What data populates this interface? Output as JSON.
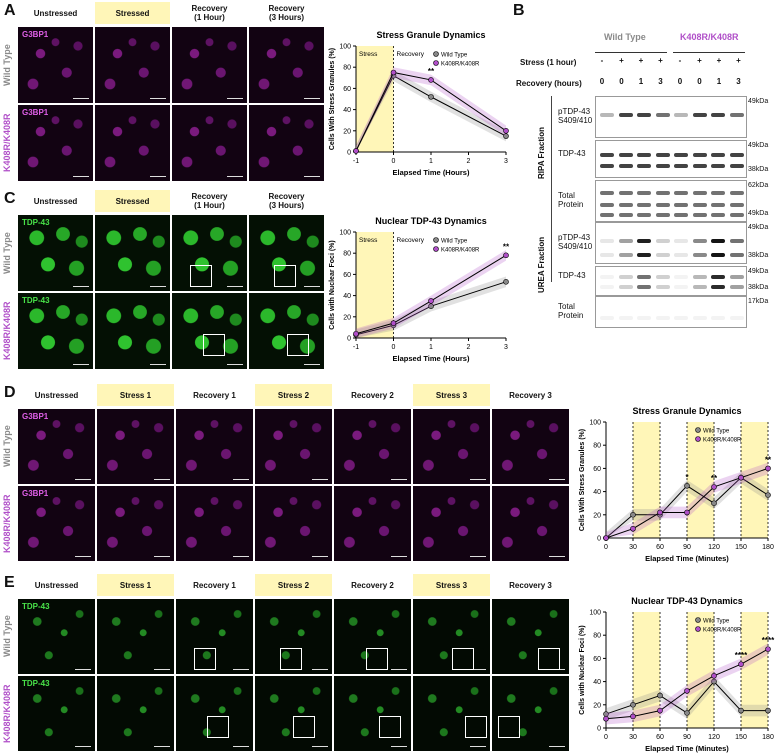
{
  "panels": {
    "A": "A",
    "B": "B",
    "C": "C",
    "D": "D",
    "E": "E"
  },
  "headers_AC": [
    "Unstressed",
    "Stressed",
    "Recovery\n(1 Hour)",
    "Recovery\n(3 Hours)"
  ],
  "headers_DE": [
    "Unstressed",
    "Stress 1",
    "Recovery 1",
    "Stress 2",
    "Recovery 2",
    "Stress 3",
    "Recovery 3"
  ],
  "row_labels": {
    "wt": "Wild Type",
    "kr": "K408R/K408R"
  },
  "stains": {
    "g3bp1": "G3BP1",
    "tdp43": "TDP-43"
  },
  "blot": {
    "group_wt": "Wild Type",
    "group_kr": "K408R/K408R",
    "row_stress": "Stress (1 hour)",
    "row_recovery": "Recovery (hours)",
    "stress_vals": [
      "-",
      "+",
      "+",
      "+",
      "-",
      "+",
      "+",
      "+"
    ],
    "recovery_vals": [
      "0",
      "0",
      "1",
      "3",
      "0",
      "0",
      "1",
      "3"
    ],
    "fractions": {
      "ripa": "RIPA Fraction",
      "urea": "UREA Fraction"
    },
    "rows": [
      {
        "label": "pTDP-43\nS409/410",
        "kda": [
          "49kDa"
        ]
      },
      {
        "label": "TDP-43",
        "kda": [
          "49kDa",
          "38kDa"
        ]
      },
      {
        "label": "Total\nProtein",
        "kda": [
          "62kDa",
          "49kDa"
        ]
      },
      {
        "label": "pTDP-43\nS409/410",
        "kda": [
          "49kDa",
          "38kDa"
        ]
      },
      {
        "label": "TDP-43",
        "kda": [
          "49kDa",
          "38kDa"
        ]
      },
      {
        "label": "Total\nProtein",
        "kda": [
          "17kDa"
        ]
      }
    ]
  },
  "chart_data": [
    {
      "type": "line",
      "title": "Stress Granule Dynamics",
      "xlabel": "Elapsed Time (Hours)",
      "ylabel": "Cells With Stress Granules (%)",
      "xlim": [
        -1,
        3
      ],
      "ylim": [
        0,
        100
      ],
      "xticks": [
        -1,
        0,
        1,
        2,
        3
      ],
      "yticks": [
        0,
        20,
        40,
        60,
        80,
        100
      ],
      "shade": [
        -1,
        0
      ],
      "shade_labels": [
        "Stress",
        "Recovery"
      ],
      "annotations": [
        {
          "x": 1,
          "text": "**"
        }
      ],
      "series": [
        {
          "name": "Wild Type",
          "color": "#888888",
          "x": [
            -1,
            0,
            1,
            3
          ],
          "y": [
            1,
            72,
            52,
            15
          ]
        },
        {
          "name": "K408R/K408R",
          "color": "#b04fc8",
          "x": [
            -1,
            0,
            1,
            3
          ],
          "y": [
            1,
            75,
            68,
            20
          ]
        }
      ]
    },
    {
      "type": "line",
      "title": "Nuclear TDP-43 Dynamics",
      "xlabel": "Elapsed Time (Hours)",
      "ylabel": "Cells with Nuclear Foci (%)",
      "xlim": [
        -1,
        3
      ],
      "ylim": [
        0,
        100
      ],
      "xticks": [
        -1,
        0,
        1,
        2,
        3
      ],
      "yticks": [
        0,
        20,
        40,
        60,
        80,
        100
      ],
      "shade": [
        -1,
        0
      ],
      "shade_labels": [
        "Stress",
        "Recovery"
      ],
      "annotations": [
        {
          "x": 3,
          "text": "**"
        }
      ],
      "series": [
        {
          "name": "Wild Type",
          "color": "#888888",
          "x": [
            -1,
            0,
            1,
            3
          ],
          "y": [
            3,
            12,
            30,
            53
          ]
        },
        {
          "name": "K408R/K408R",
          "color": "#b04fc8",
          "x": [
            -1,
            0,
            1,
            3
          ],
          "y": [
            4,
            14,
            35,
            78
          ]
        }
      ]
    },
    {
      "type": "line",
      "title": "Stress Granule Dynamics",
      "xlabel": "Elapsed Time (Minutes)",
      "ylabel": "Cells With Stress Granules (%)",
      "xlim": [
        0,
        180
      ],
      "ylim": [
        0,
        100
      ],
      "xticks": [
        0,
        30,
        60,
        90,
        120,
        150,
        180
      ],
      "yticks": [
        0,
        20,
        40,
        60,
        80,
        100
      ],
      "shade_multi": [
        [
          30,
          60
        ],
        [
          90,
          120
        ],
        [
          150,
          180
        ]
      ],
      "annotations": [
        {
          "x": 90,
          "text": "*"
        },
        {
          "x": 120,
          "text": "**"
        },
        {
          "x": 180,
          "text": "**"
        }
      ],
      "series": [
        {
          "name": "Wild Type",
          "color": "#888888",
          "x": [
            0,
            30,
            60,
            90,
            120,
            150,
            180
          ],
          "y": [
            0,
            20,
            20,
            45,
            30,
            52,
            37
          ]
        },
        {
          "name": "K408R/K408R",
          "color": "#b04fc8",
          "x": [
            0,
            30,
            60,
            90,
            120,
            150,
            180
          ],
          "y": [
            0,
            8,
            22,
            22,
            44,
            52,
            60
          ]
        }
      ]
    },
    {
      "type": "line",
      "title": "Nuclear TDP-43 Dynamics",
      "xlabel": "Elapsed Time (Minutes)",
      "ylabel": "Cells with Nuclear Foci (%)",
      "xlim": [
        0,
        180
      ],
      "ylim": [
        0,
        100
      ],
      "xticks": [
        0,
        30,
        60,
        90,
        120,
        150,
        180
      ],
      "yticks": [
        0,
        20,
        40,
        60,
        80,
        100
      ],
      "shade_multi": [
        [
          30,
          60
        ],
        [
          90,
          120
        ],
        [
          150,
          180
        ]
      ],
      "annotations": [
        {
          "x": 150,
          "text": "****"
        },
        {
          "x": 180,
          "text": "****"
        }
      ],
      "series": [
        {
          "name": "Wild Type",
          "color": "#888888",
          "x": [
            0,
            30,
            60,
            90,
            120,
            150,
            180
          ],
          "y": [
            12,
            20,
            28,
            13,
            40,
            15,
            15
          ]
        },
        {
          "name": "K408R/K408R",
          "color": "#b04fc8",
          "x": [
            0,
            30,
            60,
            90,
            120,
            150,
            180
          ],
          "y": [
            8,
            10,
            15,
            32,
            45,
            55,
            68
          ]
        }
      ]
    }
  ]
}
